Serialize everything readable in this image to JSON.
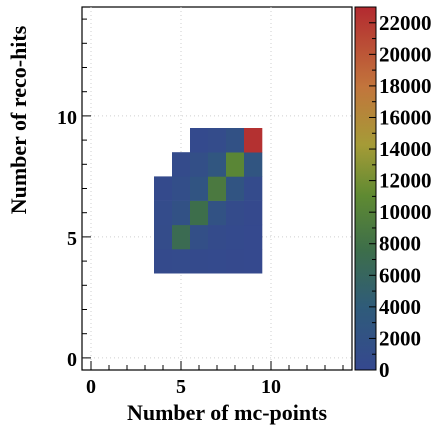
{
  "chart_data": {
    "type": "heatmap",
    "title": "",
    "xlabel": "Number of mc-points",
    "ylabel": "Number of reco-hits",
    "xlim": [
      -0.5,
      14.5
    ],
    "ylim": [
      -0.5,
      14.5
    ],
    "x_ticks": [
      "0",
      "5",
      "10"
    ],
    "y_ticks": [
      "0",
      "5",
      "10"
    ],
    "grid": true,
    "colorbar": {
      "min": 0,
      "max": 23000,
      "ticks": [
        "0",
        "2000",
        "4000",
        "6000",
        "8000",
        "10000",
        "12000",
        "14000",
        "16000",
        "18000",
        "20000",
        "22000"
      ]
    },
    "cells": [
      {
        "x": 4,
        "y": 4,
        "value": 500
      },
      {
        "x": 5,
        "y": 4,
        "value": 600
      },
      {
        "x": 6,
        "y": 4,
        "value": 500
      },
      {
        "x": 7,
        "y": 4,
        "value": 400
      },
      {
        "x": 8,
        "y": 4,
        "value": 300
      },
      {
        "x": 9,
        "y": 4,
        "value": 200
      },
      {
        "x": 4,
        "y": 5,
        "value": 900
      },
      {
        "x": 5,
        "y": 5,
        "value": 7000
      },
      {
        "x": 6,
        "y": 5,
        "value": 1500
      },
      {
        "x": 7,
        "y": 5,
        "value": 700
      },
      {
        "x": 8,
        "y": 5,
        "value": 400
      },
      {
        "x": 9,
        "y": 5,
        "value": 250
      },
      {
        "x": 4,
        "y": 6,
        "value": 800
      },
      {
        "x": 5,
        "y": 6,
        "value": 1800
      },
      {
        "x": 6,
        "y": 6,
        "value": 7500
      },
      {
        "x": 7,
        "y": 6,
        "value": 2000
      },
      {
        "x": 8,
        "y": 6,
        "value": 700
      },
      {
        "x": 9,
        "y": 6,
        "value": 300
      },
      {
        "x": 4,
        "y": 7,
        "value": 500
      },
      {
        "x": 5,
        "y": 7,
        "value": 1200
      },
      {
        "x": 6,
        "y": 7,
        "value": 2500
      },
      {
        "x": 7,
        "y": 7,
        "value": 9000
      },
      {
        "x": 8,
        "y": 7,
        "value": 2400
      },
      {
        "x": 9,
        "y": 7,
        "value": 600
      },
      {
        "x": 5,
        "y": 8,
        "value": 700
      },
      {
        "x": 6,
        "y": 8,
        "value": 1500
      },
      {
        "x": 7,
        "y": 8,
        "value": 2800
      },
      {
        "x": 8,
        "y": 8,
        "value": 10500
      },
      {
        "x": 9,
        "y": 8,
        "value": 2600
      },
      {
        "x": 6,
        "y": 9,
        "value": 400
      },
      {
        "x": 7,
        "y": 9,
        "value": 800
      },
      {
        "x": 8,
        "y": 9,
        "value": 1800
      },
      {
        "x": 9,
        "y": 9,
        "value": 22500
      }
    ]
  }
}
